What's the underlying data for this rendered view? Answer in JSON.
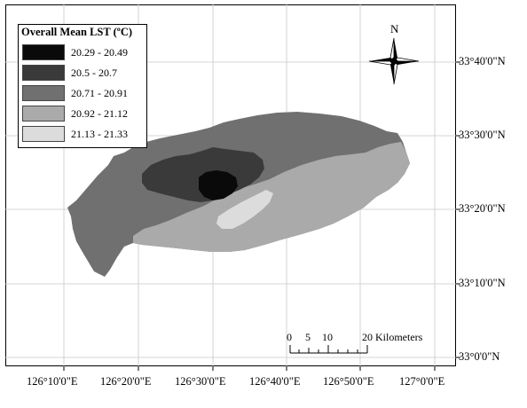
{
  "legend": {
    "title": "Overall Mean LST (ºC)",
    "classes": [
      {
        "label": "20.29 - 20.49",
        "color": "#0a0a0a"
      },
      {
        "label": "20.5 - 20.7",
        "color": "#3a3a3a"
      },
      {
        "label": "20.71 - 20.91",
        "color": "#707070"
      },
      {
        "label": "20.92 - 21.12",
        "color": "#aaaaaa"
      },
      {
        "label": "21.13 - 21.33",
        "color": "#dcdcdc"
      }
    ]
  },
  "north_arrow": {
    "label": "N"
  },
  "scale_bar": {
    "ticks": [
      "0",
      "5",
      "10",
      "20 Kilometers"
    ]
  },
  "longitude_labels": [
    "126°10'0\"E",
    "126°20'0\"E",
    "126°30'0\"E",
    "126°40'0\"E",
    "126°50'0\"E",
    "127°0'0\"E"
  ],
  "latitude_labels": [
    "33°40'0\"N",
    "33°30'0\"N",
    "33°20'0\"N",
    "33°10'0\"N",
    "33°0'0\"N"
  ]
}
